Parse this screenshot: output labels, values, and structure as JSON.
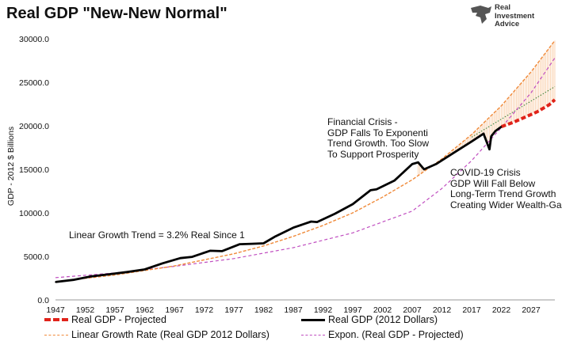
{
  "header": {
    "title": "Real GDP \"New-New Normal\""
  },
  "logo": {
    "lines": [
      "Real",
      "Investment",
      "Advice"
    ]
  },
  "annotations": {
    "linear": "Linear Growth Trend = 3.2% Real Since 1",
    "financial": [
      "Financial Crisis -",
      "GDP Falls To Exponenti",
      "Trend Growth. Too Slow",
      "To Support Prosperity"
    ],
    "covid": [
      "COVID-19 Crisis",
      "GDP Will Fall Below",
      "Long-Term Trend Growth",
      "Creating Wider Wealth-Ga"
    ]
  },
  "legend": {
    "projected": "Real GDP - Projected",
    "real": "Real GDP (2012 Dollars)",
    "linear": "Linear Growth Rate (Real GDP 2012 Dollars)",
    "expon": "Expon. (Real GDP - Projected)"
  },
  "chart_data": {
    "type": "line",
    "title": "Real GDP \"New-New Normal\"",
    "ylabel": "GDP - 2012 $ Billions",
    "xlabel": "",
    "ylim": [
      0,
      30000
    ],
    "xlim": [
      1947,
      2031
    ],
    "grid": false,
    "legend_position": "bottom",
    "x_ticks": [
      "1947",
      "1952",
      "1957",
      "1962",
      "1967",
      "1972",
      "1977",
      "1982",
      "1987",
      "1992",
      "1997",
      "2002",
      "2007",
      "2012",
      "2017",
      "2022",
      "2027"
    ],
    "y_ticks": [
      "0.0",
      "5000.0",
      "10000.0",
      "15000.0",
      "20000.0",
      "25000.0",
      "30000.0"
    ],
    "series": [
      {
        "name": "Real GDP (2012 Dollars)",
        "color": "#000000",
        "x": [
          1947,
          1950,
          1953,
          1956,
          1959,
          1962,
          1965,
          1968,
          1970,
          1973,
          1975,
          1978,
          1980,
          1982,
          1984,
          1987,
          1990,
          1991,
          1994,
          1997,
          2000,
          2001,
          2004,
          2007,
          2008,
          2009,
          2011,
          2014,
          2017,
          2019,
          2020,
          2020.3,
          2021,
          2022
        ],
        "y": [
          2050,
          2300,
          2700,
          2950,
          3200,
          3500,
          4200,
          4800,
          4950,
          5650,
          5600,
          6400,
          6450,
          6500,
          7300,
          8300,
          9000,
          8950,
          9900,
          11000,
          12600,
          12700,
          13700,
          15600,
          15800,
          15000,
          15600,
          16900,
          18200,
          19100,
          17300,
          18800,
          19400,
          19900
        ]
      },
      {
        "name": "Real GDP - Projected",
        "color": "#e0231a",
        "x": [
          2022,
          2024,
          2026,
          2028,
          2030,
          2031
        ],
        "y": [
          19900,
          20400,
          21000,
          21600,
          22400,
          23000
        ]
      },
      {
        "name": "Linear Growth Rate (Real GDP 2012 Dollars)",
        "color": "#f08a3a",
        "x": [
          1947,
          1957,
          1967,
          1977,
          1982,
          1987,
          1992,
          1997,
          2002,
          2007,
          2012,
          2017,
          2022,
          2027,
          2031
        ],
        "y": [
          2100,
          2850,
          3900,
          5300,
          6200,
          7300,
          8550,
          10000,
          11800,
          13800,
          16200,
          19000,
          22300,
          26200,
          29800
        ]
      },
      {
        "name": "Expon. (Real GDP - Projected)",
        "color": "#c04ec0",
        "x": [
          1947,
          1957,
          1967,
          1977,
          1987,
          1997,
          2007,
          2012,
          2017,
          2022,
          2027,
          2031
        ],
        "y": [
          2550,
          3100,
          3850,
          4750,
          6000,
          7700,
          10200,
          12800,
          16000,
          19800,
          23800,
          27800
        ]
      }
    ]
  },
  "colors": {
    "projected": "#e0231a",
    "real": "#000000",
    "linear": "#f08a3a",
    "expon": "#c04ec0",
    "trend_dotted": "#2e7d32"
  }
}
